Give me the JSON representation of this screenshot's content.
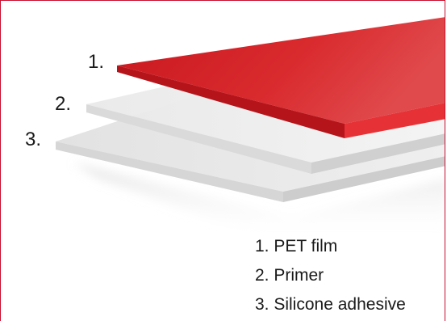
{
  "layers": [
    {
      "number": "1.",
      "label": "1. PET film",
      "color": "#d9262b"
    },
    {
      "number": "2.",
      "label": "2. Primer",
      "color": "#e8e8e8"
    },
    {
      "number": "3.",
      "label": "3. Silicone adhesive",
      "color": "#e3e3e3"
    }
  ],
  "frame_color": "#c8102e"
}
